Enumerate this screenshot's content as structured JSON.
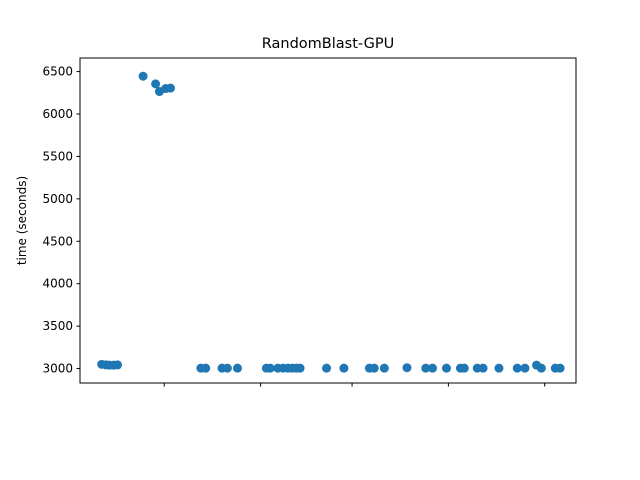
{
  "chart_data": {
    "type": "scatter",
    "title": "RandomBlast-GPU",
    "xlabel": "",
    "ylabel": "time (seconds)",
    "ylim": [
      2830,
      6660
    ],
    "xlim": [
      -2.5,
      100.5
    ],
    "yticks": [
      3000,
      3500,
      4000,
      4500,
      5000,
      5500,
      6000,
      6500
    ],
    "ytick_labels": [
      "3000",
      "3500",
      "4000",
      "4500",
      "5000",
      "5500",
      "6000",
      "6500"
    ],
    "xticks_unlabeled": [
      15,
      35,
      54,
      74,
      94
    ],
    "grid": false,
    "marker_color": "#1f77b4",
    "series": [
      {
        "points": [
          {
            "x": 2.0,
            "y": 3050
          },
          {
            "x": 2.9,
            "y": 3043
          },
          {
            "x": 3.6,
            "y": 3040
          },
          {
            "x": 4.5,
            "y": 3040
          },
          {
            "x": 5.3,
            "y": 3043
          },
          {
            "x": 10.6,
            "y": 6445
          },
          {
            "x": 13.2,
            "y": 6355
          },
          {
            "x": 14.0,
            "y": 6265
          },
          {
            "x": 15.3,
            "y": 6300
          },
          {
            "x": 16.3,
            "y": 6305
          },
          {
            "x": 22.6,
            "y": 3005
          },
          {
            "x": 23.6,
            "y": 3005
          },
          {
            "x": 27.0,
            "y": 3005
          },
          {
            "x": 28.1,
            "y": 3005
          },
          {
            "x": 30.2,
            "y": 3005
          },
          {
            "x": 36.2,
            "y": 3005
          },
          {
            "x": 37.0,
            "y": 3005
          },
          {
            "x": 38.6,
            "y": 3005
          },
          {
            "x": 39.7,
            "y": 3005
          },
          {
            "x": 40.7,
            "y": 3005
          },
          {
            "x": 41.6,
            "y": 3005
          },
          {
            "x": 42.4,
            "y": 3005
          },
          {
            "x": 43.2,
            "y": 3005
          },
          {
            "x": 48.7,
            "y": 3005
          },
          {
            "x": 52.3,
            "y": 3005
          },
          {
            "x": 57.6,
            "y": 3005
          },
          {
            "x": 58.6,
            "y": 3005
          },
          {
            "x": 60.7,
            "y": 3005
          },
          {
            "x": 65.4,
            "y": 3010
          },
          {
            "x": 69.3,
            "y": 3005
          },
          {
            "x": 70.7,
            "y": 3005
          },
          {
            "x": 73.6,
            "y": 3005
          },
          {
            "x": 76.5,
            "y": 3005
          },
          {
            "x": 77.3,
            "y": 3005
          },
          {
            "x": 80.0,
            "y": 3005
          },
          {
            "x": 81.2,
            "y": 3005
          },
          {
            "x": 84.5,
            "y": 3005
          },
          {
            "x": 88.3,
            "y": 3005
          },
          {
            "x": 89.9,
            "y": 3005
          },
          {
            "x": 92.3,
            "y": 3040
          },
          {
            "x": 93.3,
            "y": 3005
          },
          {
            "x": 96.2,
            "y": 3005
          },
          {
            "x": 97.2,
            "y": 3005
          }
        ]
      }
    ]
  }
}
